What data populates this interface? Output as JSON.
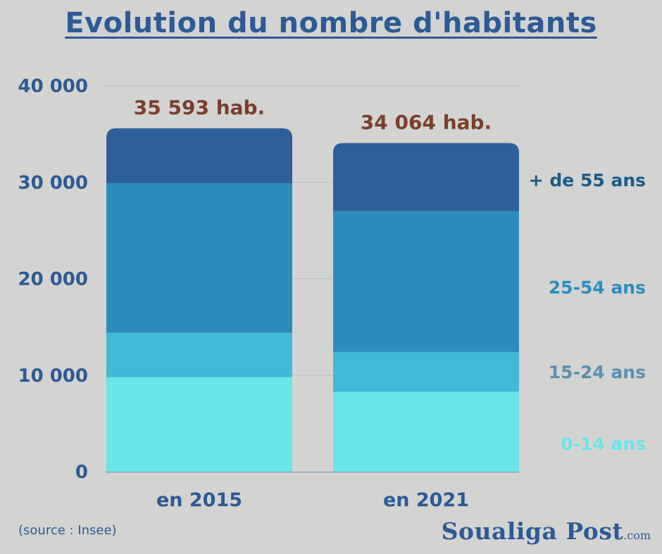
{
  "chart_data": {
    "type": "bar",
    "stacked": true,
    "title": "Evolution du nombre d'habitants",
    "categories": [
      "en 2015",
      "en 2021"
    ],
    "series": [
      {
        "name": "0-14 ans",
        "values": [
          9800,
          8300
        ],
        "color": "#6ae5e8"
      },
      {
        "name": "15-24 ans",
        "values": [
          4600,
          4100
        ],
        "color": "#41b9d7"
      },
      {
        "name": "25-54 ans",
        "values": [
          15500,
          14600
        ],
        "color": "#2c8dbd"
      },
      {
        "name": "+ de 55 ans",
        "values": [
          5693,
          7064
        ],
        "color": "#2d5f98"
      }
    ],
    "totals": [
      "35 593 hab.",
      "34 064 hab."
    ],
    "total_values": [
      35593,
      34064
    ],
    "ylim": [
      0,
      40000
    ],
    "yticks": [
      0,
      10000,
      20000,
      30000,
      40000
    ],
    "ytick_labels": [
      "0",
      "10 000",
      "20 000",
      "30 000",
      "40 000"
    ],
    "grid": true,
    "legend_placement": "right",
    "legend_colors": [
      "#6ae5e8",
      "#5c8fb0",
      "#2c8dbd",
      "#1b5a87"
    ]
  },
  "footer": {
    "source": "(source : Insee)",
    "brand": "Soualiga Post",
    "brand_suffix": ".com"
  }
}
